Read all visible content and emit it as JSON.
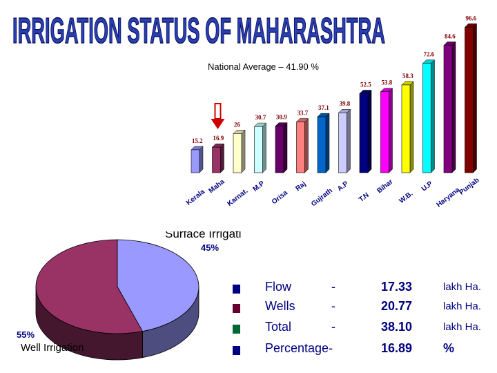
{
  "page_title": "IRRIGATION STATUS OF MAHARASHTRA",
  "chart_data": [
    {
      "type": "bar",
      "title": "IRRIGATION STATUS OF MAHARASHTRA",
      "annotation": "National Average – 41.90 %",
      "categories": [
        "Kerala",
        "Maha",
        "Karnat.",
        "M.P",
        "Orisa",
        "Raj",
        "Gujrath",
        "A.P",
        "T.N",
        "Bihar",
        "W.B.",
        "U.P",
        "Haryana",
        "Punjab"
      ],
      "values": [
        15.2,
        16.9,
        26,
        30.7,
        30.9,
        33.7,
        37.1,
        39.8,
        52.5,
        53.8,
        58.3,
        72.6,
        84.6,
        96.6
      ],
      "value_labels": [
        "15.2",
        "16.9",
        "26",
        "30.7",
        "30.9",
        "33.7",
        "37.1",
        "39.8",
        "52.5",
        "53.8",
        "58.3",
        "72.6",
        "84.6",
        "96.6"
      ],
      "colors": [
        "#9999ff",
        "#993366",
        "#ffffcc",
        "#ccffff",
        "#660066",
        "#ff8080",
        "#0066cc",
        "#ccccff",
        "#000080",
        "#ff00ff",
        "#ffff00",
        "#00ffff",
        "#800080",
        "#800000"
      ],
      "highlight": "Maha",
      "ylim": [
        0,
        100
      ],
      "grid": false
    },
    {
      "type": "pie",
      "series": [
        {
          "name": "Surface Irrigation",
          "value": 45,
          "label": "45%",
          "color": "#9999ff"
        },
        {
          "name": "Well Irrigation",
          "value": 55,
          "label": "55%",
          "color": "#993366"
        }
      ]
    }
  ],
  "stats": [
    {
      "label": "Flow",
      "dash": "-",
      "value": "17.33",
      "unit": "lakh Ha."
    },
    {
      "label": "Wells",
      "dash": "-",
      "value": "20.77",
      "unit": "lakh Ha."
    },
    {
      "label": "Total",
      "dash": "-",
      "value": "38.10",
      "unit": "lakh Ha."
    },
    {
      "label": "Percentage-",
      "dash": "",
      "value": "16.89",
      "unit": "%"
    }
  ],
  "bullet_colors": [
    "#000080",
    "#660033",
    "#006633",
    "#000080"
  ],
  "colors": {
    "title_fill": "#2a3fb0",
    "title_stroke": "#0a1060",
    "value_label": "#800000",
    "axis_label": "#000080",
    "arrow": "#cc0000",
    "pie_label": "#000080"
  }
}
